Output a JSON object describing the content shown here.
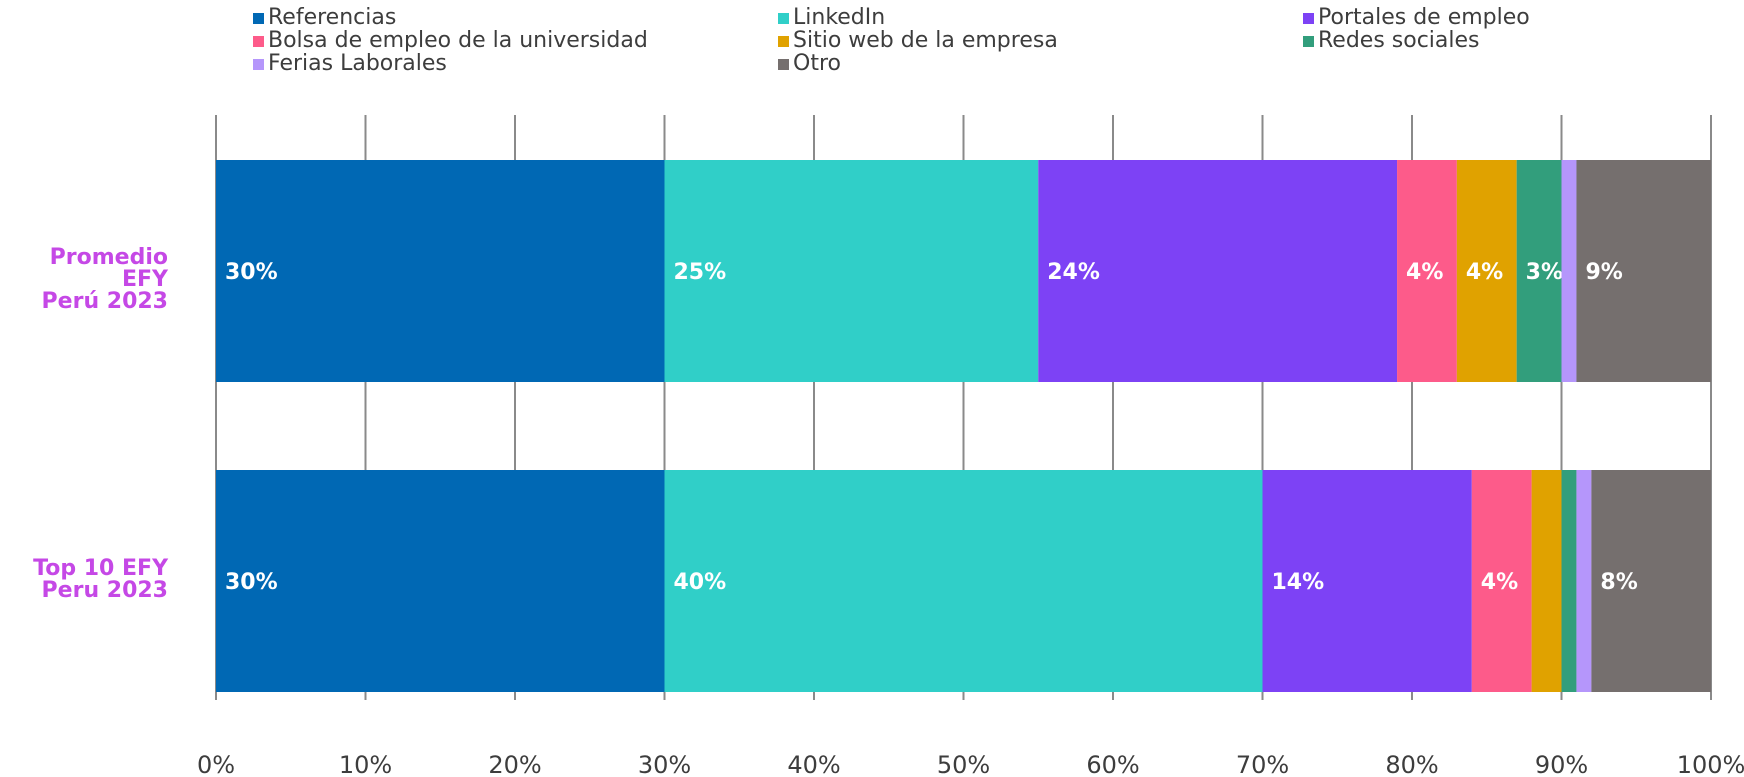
{
  "chart_data": {
    "type": "bar",
    "orientation": "horizontal",
    "stacked": true,
    "xlim": [
      0,
      100
    ],
    "x_ticks": [
      "0%",
      "10%",
      "20%",
      "30%",
      "40%",
      "50%",
      "60%",
      "70%",
      "80%",
      "90%",
      "100%"
    ],
    "categories": [
      "Promedio EFY\nPerú 2023",
      "Top 10 EFY\nPeru 2023"
    ],
    "category_lines": [
      [
        "Promedio EFY",
        "Perú 2023"
      ],
      [
        "Top 10 EFY",
        "Peru 2023"
      ]
    ],
    "category_color": "#c548e6",
    "legend_position": "top",
    "grid": true,
    "series": [
      {
        "name": "Referencias",
        "color": "#0068b4",
        "values": [
          30,
          30
        ],
        "labels": [
          "30%",
          "30%"
        ]
      },
      {
        "name": "LinkedIn",
        "color": "#30cfc8",
        "values": [
          25,
          40
        ],
        "labels": [
          "25%",
          "40%"
        ]
      },
      {
        "name": "Portales de empleo",
        "color": "#7d42f5",
        "values": [
          24,
          14
        ],
        "labels": [
          "24%",
          "14%"
        ]
      },
      {
        "name": "Bolsa de empleo de la universidad",
        "color": "#fd5b8a",
        "values": [
          4,
          4
        ],
        "labels": [
          "4%",
          "4%"
        ]
      },
      {
        "name": "Sitio web de la empresa",
        "color": "#e0a200",
        "values": [
          4,
          2
        ],
        "labels": [
          "4%",
          ""
        ]
      },
      {
        "name": "Redes sociales",
        "color": "#329e7c",
        "values": [
          3,
          1
        ],
        "labels": [
          "3%",
          ""
        ]
      },
      {
        "name": "Ferias Laborales",
        "color": "#b596fb",
        "values": [
          1,
          1
        ],
        "labels": [
          "",
          ""
        ]
      },
      {
        "name": "Otro",
        "color": "#756f6e",
        "values": [
          9,
          8
        ],
        "labels": [
          "9%",
          "8%"
        ]
      }
    ]
  }
}
